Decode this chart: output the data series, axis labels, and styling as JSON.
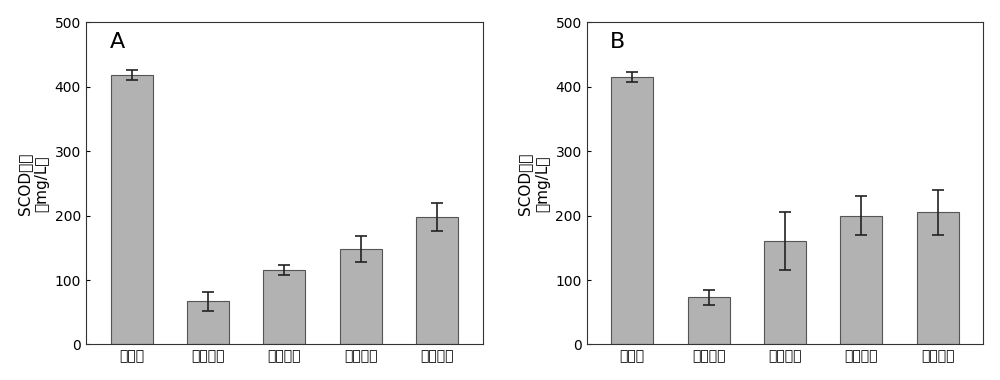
{
  "panel_A": {
    "label": "A",
    "categories": [
      "原污泥",
      "第一隔室",
      "第二隔室",
      "第三隔室",
      "第四隔室"
    ],
    "values": [
      418,
      67,
      115,
      148,
      198
    ],
    "errors": [
      8,
      15,
      8,
      20,
      22
    ],
    "ylabel_line1": "SCOD浓度",
    "ylabel_line2": "（mg/L）",
    "ylim": [
      0,
      500
    ],
    "yticks": [
      0,
      100,
      200,
      300,
      400,
      500
    ]
  },
  "panel_B": {
    "label": "B",
    "categories": [
      "原污泥",
      "第一隔室",
      "第二隔室",
      "第三隔室",
      "第四隔室"
    ],
    "values": [
      415,
      73,
      160,
      200,
      205
    ],
    "errors": [
      8,
      12,
      45,
      30,
      35
    ],
    "ylabel_line1": "SCOD浓度",
    "ylabel_line2": "（mg/L）",
    "ylim": [
      0,
      500
    ],
    "yticks": [
      0,
      100,
      200,
      300,
      400,
      500
    ]
  },
  "bar_color": "#b2b2b2",
  "bar_edgecolor": "#555555",
  "bar_width": 0.55,
  "error_color": "#222222",
  "error_capsize": 4,
  "error_linewidth": 1.2,
  "background_color": "#ffffff",
  "label_fontsize": 16,
  "tick_fontsize": 10,
  "ylabel_fontsize": 11
}
